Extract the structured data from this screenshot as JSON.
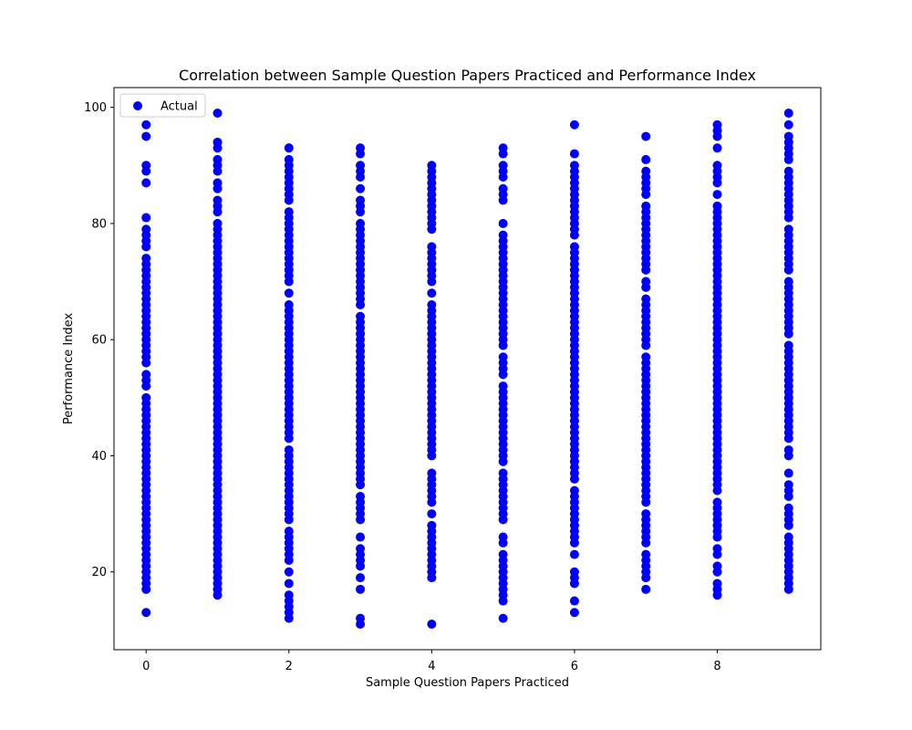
{
  "chart_data": {
    "type": "scatter",
    "title": "Correlation between Sample Question Papers Practiced and Performance Index",
    "xlabel": "Sample Question Papers Practiced",
    "ylabel": "Performance Index",
    "xlim": [
      -0.45,
      9.45
    ],
    "ylim": [
      6.6,
      103.4
    ],
    "xticks": [
      0,
      2,
      4,
      6,
      8
    ],
    "yticks": [
      20,
      40,
      60,
      80,
      100
    ],
    "grid": false,
    "legend_position": "top-left",
    "series": [
      {
        "name": "Actual",
        "color": "#0000ff",
        "points_by_x": [
          {
            "x": 0,
            "y": [
              13,
              17,
              18,
              19,
              20,
              21,
              22,
              23,
              24,
              25,
              26,
              27,
              28,
              29,
              30,
              31,
              32,
              33,
              34,
              35,
              36,
              37,
              38,
              39,
              40,
              41,
              42,
              43,
              44,
              45,
              46,
              47,
              48,
              49,
              50,
              52,
              53,
              54,
              56,
              57,
              58,
              59,
              60,
              61,
              62,
              63,
              64,
              65,
              66,
              67,
              68,
              69,
              70,
              71,
              72,
              73,
              74,
              76,
              77,
              78,
              79,
              81,
              87,
              89,
              90,
              95,
              97
            ]
          },
          {
            "x": 1,
            "y": [
              16,
              17,
              18,
              19,
              20,
              21,
              22,
              23,
              24,
              25,
              26,
              27,
              28,
              29,
              30,
              31,
              32,
              33,
              34,
              35,
              36,
              37,
              38,
              39,
              40,
              41,
              42,
              43,
              44,
              45,
              46,
              47,
              48,
              49,
              50,
              51,
              52,
              53,
              54,
              55,
              56,
              57,
              58,
              59,
              60,
              61,
              62,
              63,
              64,
              65,
              66,
              67,
              68,
              69,
              70,
              71,
              72,
              73,
              74,
              75,
              76,
              77,
              78,
              79,
              80,
              82,
              83,
              84,
              86,
              87,
              89,
              90,
              91,
              93,
              94,
              99
            ]
          },
          {
            "x": 2,
            "y": [
              12,
              13,
              14,
              15,
              16,
              18,
              20,
              22,
              23,
              24,
              25,
              26,
              27,
              29,
              30,
              31,
              32,
              33,
              34,
              35,
              36,
              37,
              38,
              39,
              40,
              41,
              43,
              44,
              45,
              46,
              47,
              48,
              49,
              50,
              51,
              52,
              53,
              54,
              55,
              56,
              57,
              58,
              59,
              60,
              61,
              62,
              63,
              64,
              65,
              66,
              68,
              70,
              71,
              72,
              73,
              74,
              75,
              76,
              77,
              78,
              79,
              80,
              81,
              82,
              84,
              85,
              86,
              87,
              88,
              89,
              90,
              91,
              93
            ]
          },
          {
            "x": 3,
            "y": [
              11,
              12,
              17,
              19,
              21,
              22,
              23,
              24,
              26,
              29,
              30,
              31,
              32,
              33,
              35,
              36,
              37,
              38,
              39,
              40,
              41,
              42,
              43,
              44,
              45,
              46,
              47,
              48,
              49,
              50,
              51,
              52,
              53,
              54,
              55,
              56,
              57,
              58,
              59,
              60,
              61,
              62,
              63,
              64,
              66,
              67,
              68,
              69,
              70,
              71,
              72,
              73,
              74,
              75,
              76,
              77,
              78,
              79,
              80,
              82,
              83,
              84,
              86,
              88,
              89,
              90,
              92,
              93
            ]
          },
          {
            "x": 4,
            "y": [
              11,
              19,
              20,
              21,
              22,
              23,
              24,
              25,
              26,
              27,
              28,
              30,
              32,
              33,
              34,
              35,
              36,
              37,
              40,
              41,
              42,
              43,
              44,
              45,
              46,
              47,
              48,
              49,
              50,
              51,
              52,
              53,
              54,
              55,
              56,
              57,
              58,
              59,
              60,
              61,
              62,
              63,
              64,
              65,
              66,
              68,
              70,
              71,
              72,
              73,
              74,
              75,
              76,
              79,
              80,
              81,
              82,
              83,
              84,
              85,
              86,
              87,
              88,
              89,
              90
            ]
          },
          {
            "x": 5,
            "y": [
              12,
              15,
              16,
              17,
              18,
              19,
              20,
              21,
              22,
              23,
              25,
              26,
              29,
              30,
              31,
              32,
              33,
              34,
              35,
              36,
              37,
              39,
              40,
              41,
              42,
              43,
              44,
              45,
              46,
              47,
              48,
              49,
              50,
              51,
              52,
              54,
              55,
              56,
              57,
              59,
              60,
              61,
              62,
              63,
              64,
              65,
              66,
              67,
              68,
              69,
              70,
              71,
              72,
              73,
              74,
              75,
              76,
              77,
              78,
              80,
              84,
              85,
              86,
              88,
              89,
              90,
              92,
              93
            ]
          },
          {
            "x": 6,
            "y": [
              13,
              15,
              18,
              19,
              20,
              23,
              25,
              26,
              27,
              28,
              29,
              30,
              31,
              32,
              33,
              34,
              36,
              37,
              38,
              39,
              40,
              41,
              42,
              43,
              44,
              45,
              46,
              47,
              48,
              49,
              50,
              51,
              52,
              53,
              54,
              55,
              56,
              57,
              58,
              59,
              60,
              61,
              62,
              63,
              64,
              65,
              66,
              67,
              68,
              69,
              70,
              71,
              72,
              73,
              74,
              75,
              76,
              78,
              79,
              80,
              81,
              82,
              83,
              84,
              85,
              86,
              87,
              88,
              89,
              90,
              92,
              97
            ]
          },
          {
            "x": 7,
            "y": [
              17,
              19,
              20,
              21,
              22,
              23,
              25,
              26,
              27,
              28,
              29,
              30,
              32,
              33,
              34,
              35,
              36,
              37,
              38,
              39,
              40,
              41,
              42,
              43,
              44,
              45,
              46,
              47,
              48,
              49,
              50,
              51,
              52,
              53,
              54,
              55,
              56,
              57,
              59,
              60,
              61,
              62,
              63,
              64,
              65,
              66,
              67,
              69,
              70,
              72,
              73,
              74,
              75,
              76,
              77,
              78,
              79,
              80,
              81,
              82,
              83,
              85,
              86,
              87,
              88,
              89,
              91,
              95
            ]
          },
          {
            "x": 8,
            "y": [
              16,
              17,
              18,
              20,
              21,
              23,
              24,
              26,
              27,
              28,
              29,
              30,
              31,
              32,
              34,
              35,
              36,
              37,
              38,
              39,
              40,
              41,
              42,
              43,
              44,
              45,
              46,
              47,
              48,
              49,
              50,
              51,
              52,
              53,
              54,
              55,
              56,
              57,
              58,
              59,
              60,
              61,
              62,
              63,
              64,
              65,
              66,
              67,
              68,
              69,
              70,
              71,
              72,
              73,
              74,
              75,
              76,
              77,
              78,
              79,
              80,
              81,
              82,
              83,
              85,
              87,
              88,
              89,
              90,
              93,
              95,
              96,
              97
            ]
          },
          {
            "x": 9,
            "y": [
              17,
              18,
              19,
              20,
              21,
              22,
              23,
              24,
              25,
              26,
              28,
              29,
              30,
              31,
              33,
              34,
              35,
              37,
              40,
              41,
              43,
              44,
              45,
              46,
              47,
              48,
              49,
              50,
              51,
              52,
              53,
              54,
              55,
              56,
              57,
              58,
              59,
              61,
              62,
              63,
              64,
              65,
              66,
              67,
              68,
              69,
              70,
              72,
              73,
              74,
              75,
              76,
              77,
              78,
              79,
              81,
              82,
              83,
              84,
              85,
              86,
              87,
              88,
              89,
              91,
              92,
              93,
              94,
              95,
              97,
              99
            ]
          }
        ]
      }
    ]
  }
}
